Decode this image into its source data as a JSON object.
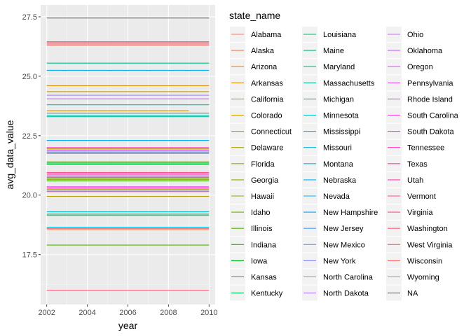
{
  "chart_data": {
    "type": "line",
    "xlabel": "year",
    "ylabel": "avg_data_value",
    "xlim": [
      2001.7,
      2010.3
    ],
    "ylim": [
      15.4,
      28.0
    ],
    "x_ticks": [
      2002,
      2004,
      2006,
      2008,
      2010
    ],
    "x_tick_labels": [
      "2002",
      "2004",
      "2006",
      "2008",
      "2010"
    ],
    "y_ticks": [
      17.5,
      20.0,
      22.5,
      25.0,
      27.5
    ],
    "y_tick_labels": [
      "17.5",
      "20.0",
      "22.5",
      "25.0",
      "27.5"
    ],
    "grid": true,
    "legend_title": "state_name",
    "legend_position": "right",
    "series": [
      {
        "name": "Alabama",
        "color": "#F8766D",
        "x": [
          2002,
          2010
        ],
        "y": [
          26.35,
          26.35
        ]
      },
      {
        "name": "Alaska",
        "color": "#F07F4E",
        "x": [
          2002,
          2010
        ],
        "y": [
          18.55,
          18.55
        ]
      },
      {
        "name": "Arizona",
        "color": "#E7861B",
        "x": [
          2002,
          2010
        ],
        "y": [
          26.4,
          26.4
        ]
      },
      {
        "name": "Arkansas",
        "color": "#DD8D00",
        "x": [
          2002,
          2010
        ],
        "y": [
          24.6,
          24.6
        ]
      },
      {
        "name": "California",
        "color": "#D29300",
        "x": [
          2002,
          2009
        ],
        "y": [
          23.55,
          23.55
        ]
      },
      {
        "name": "Colorado",
        "color": "#C69900",
        "x": [
          2002,
          2010
        ],
        "y": [
          24.35,
          24.35
        ]
      },
      {
        "name": "Connecticut",
        "color": "#B99E00",
        "x": [
          2002,
          2010
        ],
        "y": [
          19.95,
          19.95
        ]
      },
      {
        "name": "Delaware",
        "color": "#ABA300",
        "x": [
          2002,
          2010
        ],
        "y": [
          21.95,
          21.95
        ]
      },
      {
        "name": "Florida",
        "color": "#9DA700",
        "x": [
          2002,
          2010
        ],
        "y": [
          20.25,
          20.25
        ]
      },
      {
        "name": "Georgia",
        "color": "#8EAB00",
        "x": [
          2002,
          2010
        ],
        "y": [
          20.65,
          20.65
        ]
      },
      {
        "name": "Hawaii",
        "color": "#7CAE00",
        "x": [
          2002,
          2010
        ],
        "y": [
          21.4,
          21.4
        ]
      },
      {
        "name": "Idaho",
        "color": "#68B100",
        "x": [
          2002,
          2010
        ],
        "y": [
          20.7,
          20.7
        ]
      },
      {
        "name": "Illinois",
        "color": "#4FB400",
        "x": [
          2002,
          2010
        ],
        "y": [
          17.9,
          17.9
        ]
      },
      {
        "name": "Indiana",
        "color": "#2AB600",
        "x": [
          2002,
          2010
        ],
        "y": [
          20.6,
          20.6
        ]
      },
      {
        "name": "Iowa",
        "color": "#00B81F",
        "x": [
          2002,
          2010
        ],
        "y": [
          21.35,
          21.35
        ]
      },
      {
        "name": "Kansas",
        "color": "#00BA3E",
        "x": [
          2002,
          2010
        ],
        "y": [
          21.3,
          21.3
        ]
      },
      {
        "name": "Kentucky",
        "color": "#00BC56",
        "x": [
          2002,
          2010
        ],
        "y": [
          19.2,
          19.2
        ]
      },
      {
        "name": "Louisiana",
        "color": "#00BD6B",
        "x": [
          2002,
          2010
        ],
        "y": [
          23.45,
          23.45
        ]
      },
      {
        "name": "Maine",
        "color": "#00BE7E",
        "x": [
          2002,
          2010
        ],
        "y": [
          19.15,
          19.15
        ]
      },
      {
        "name": "Maryland",
        "color": "#00BF90",
        "x": [
          2002,
          2010
        ],
        "y": [
          25.55,
          25.55
        ]
      },
      {
        "name": "Massachusetts",
        "color": "#00C0A1",
        "x": [
          2002,
          2010
        ],
        "y": [
          23.3,
          23.3
        ]
      },
      {
        "name": "Michigan",
        "color": "#00C0B1",
        "x": [
          2002,
          2010
        ],
        "y": [
          23.8,
          23.8
        ]
      },
      {
        "name": "Minnesota",
        "color": "#00BFC0",
        "x": [
          2002,
          2010
        ],
        "y": [
          23.35,
          23.35
        ]
      },
      {
        "name": "Mississippi",
        "color": "#00BDCD",
        "x": [
          2002,
          2010
        ],
        "y": [
          19.3,
          19.3
        ]
      },
      {
        "name": "Missouri",
        "color": "#00BADA",
        "x": [
          2002,
          2010
        ],
        "y": [
          18.65,
          18.65
        ]
      },
      {
        "name": "Montana",
        "color": "#00B7E5",
        "x": [
          2002,
          2010
        ],
        "y": [
          22.3,
          22.3
        ]
      },
      {
        "name": "Nebraska",
        "color": "#00B2F0",
        "x": [
          2002,
          2010
        ],
        "y": [
          25.25,
          25.25
        ]
      },
      {
        "name": "Nevada",
        "color": "#00ADFA",
        "x": [
          2002,
          2010
        ],
        "y": [
          22.3,
          22.3
        ]
      },
      {
        "name": "New Hampshire",
        "color": "#00A6FF",
        "x": [
          2002,
          2010
        ],
        "y": [
          21.85,
          21.85
        ]
      },
      {
        "name": "New Jersey",
        "color": "#449EFF",
        "x": [
          2002,
          2010
        ],
        "y": [
          21.8,
          21.8
        ]
      },
      {
        "name": "New Mexico",
        "color": "#6D96FF",
        "x": [
          2002,
          2010
        ],
        "y": [
          21.75,
          21.75
        ]
      },
      {
        "name": "New York",
        "color": "#8A8DFF",
        "x": [
          2002,
          2010
        ],
        "y": [
          21.85,
          21.85
        ]
      },
      {
        "name": "North Carolina",
        "color": "#A183FF",
        "x": [
          2002,
          2010
        ],
        "y": [
          24.2,
          24.2
        ]
      },
      {
        "name": "North Dakota",
        "color": "#B479FF",
        "x": [
          2002,
          2010
        ],
        "y": [
          20.2,
          20.2
        ]
      },
      {
        "name": "Ohio",
        "color": "#C66EFF",
        "x": [
          2002,
          2010
        ],
        "y": [
          24.05,
          24.05
        ]
      },
      {
        "name": "Oklahoma",
        "color": "#D463FF",
        "x": [
          2002,
          2010
        ],
        "y": [
          20.85,
          20.85
        ]
      },
      {
        "name": "Oregon",
        "color": "#E058FB",
        "x": [
          2002,
          2010
        ],
        "y": [
          21.9,
          21.9
        ]
      },
      {
        "name": "Pennsylvania",
        "color": "#EA4EF5",
        "x": [
          2002,
          2010
        ],
        "y": [
          20.35,
          20.35
        ]
      },
      {
        "name": "Rhode Island",
        "color": "#F245EC",
        "x": [
          2002,
          2010
        ],
        "y": [
          20.8,
          20.8
        ]
      },
      {
        "name": "South Carolina",
        "color": "#F83EE2",
        "x": [
          2002,
          2010
        ],
        "y": [
          20.75,
          20.75
        ]
      },
      {
        "name": "South Dakota",
        "color": "#FC3AD6",
        "x": [
          2002,
          2010
        ],
        "y": [
          22.0,
          22.0
        ]
      },
      {
        "name": "Tennessee",
        "color": "#FF39C9",
        "x": [
          2002,
          2010
        ],
        "y": [
          26.45,
          26.45
        ]
      },
      {
        "name": "Texas",
        "color": "#FF3BBA",
        "x": [
          2002,
          2010
        ],
        "y": [
          20.3,
          20.3
        ]
      },
      {
        "name": "Utah",
        "color": "#FF40AA",
        "x": [
          2002,
          2010
        ],
        "y": [
          20.9,
          20.9
        ]
      },
      {
        "name": "Vermont",
        "color": "#FF4799",
        "x": [
          2002,
          2010
        ],
        "y": [
          20.15,
          20.15
        ]
      },
      {
        "name": "Virginia",
        "color": "#FF5087",
        "x": [
          2002,
          2010
        ],
        "y": [
          20.95,
          20.95
        ]
      },
      {
        "name": "Washington",
        "color": "#FF5A75",
        "x": [
          2002,
          2010
        ],
        "y": [
          16.0,
          16.0
        ]
      },
      {
        "name": "West Virginia",
        "color": "#FD6463",
        "x": [
          2002,
          2010
        ],
        "y": [
          18.6,
          18.6
        ]
      },
      {
        "name": "Wisconsin",
        "color": "#FC6D68",
        "x": [
          2002,
          2010
        ],
        "y": [
          26.3,
          26.3
        ]
      },
      {
        "name": "Wyoming",
        "color": "#F8766D",
        "x": [
          2002,
          2010
        ],
        "y": [
          26.4,
          26.4
        ]
      },
      {
        "name": "NA",
        "color": "#6B6B6B",
        "x": [
          2002,
          2010
        ],
        "y": [
          27.45,
          27.45
        ]
      }
    ]
  }
}
